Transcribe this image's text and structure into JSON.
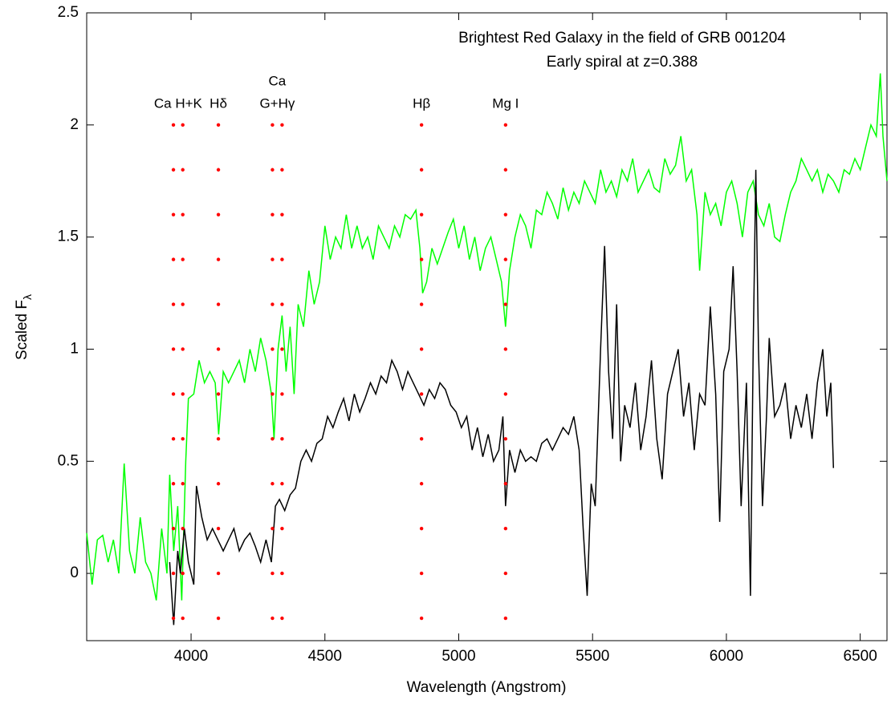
{
  "chart_data": {
    "type": "line",
    "title": [
      "Brightest Red Galaxy in the field of GRB 001204",
      "Early spiral at z=0.388"
    ],
    "xlabel": "Wavelength (Angstrom)",
    "ylabel": {
      "text": "Scaled F",
      "subscript": "λ"
    },
    "xlim": [
      3610,
      6600
    ],
    "ylim": [
      -0.3,
      2.5
    ],
    "xticks": [
      4000,
      4500,
      5000,
      5500,
      6000,
      6500
    ],
    "yticks": [
      0,
      0.5,
      1,
      1.5,
      2,
      2.5
    ],
    "grid": false,
    "series": [
      {
        "color": "#00ff00",
        "x": [
          3610,
          3630,
          3650,
          3670,
          3690,
          3710,
          3730,
          3750,
          3770,
          3790,
          3810,
          3830,
          3850,
          3870,
          3890,
          3910,
          3920,
          3935,
          3950,
          3965,
          3980,
          3990,
          4010,
          4030,
          4050,
          4070,
          4090,
          4103,
          4120,
          4140,
          4160,
          4180,
          4200,
          4220,
          4240,
          4260,
          4280,
          4300,
          4310,
          4325,
          4340,
          4355,
          4370,
          4385,
          4400,
          4420,
          4440,
          4460,
          4480,
          4500,
          4520,
          4540,
          4560,
          4580,
          4600,
          4620,
          4640,
          4660,
          4680,
          4700,
          4720,
          4740,
          4760,
          4780,
          4800,
          4820,
          4840,
          4855,
          4865,
          4880,
          4900,
          4920,
          4940,
          4960,
          4980,
          5000,
          5020,
          5040,
          5060,
          5080,
          5100,
          5120,
          5140,
          5160,
          5175,
          5190,
          5210,
          5230,
          5250,
          5270,
          5290,
          5310,
          5330,
          5350,
          5370,
          5390,
          5410,
          5430,
          5450,
          5470,
          5490,
          5510,
          5530,
          5550,
          5570,
          5590,
          5610,
          5630,
          5650,
          5670,
          5690,
          5710,
          5730,
          5750,
          5770,
          5790,
          5810,
          5830,
          5850,
          5870,
          5890,
          5900,
          5920,
          5940,
          5960,
          5980,
          6000,
          6020,
          6040,
          6060,
          6080,
          6100,
          6120,
          6140,
          6160,
          6180,
          6200,
          6220,
          6240,
          6260,
          6280,
          6300,
          6320,
          6340,
          6360,
          6380,
          6400,
          6420,
          6440,
          6460,
          6480,
          6500,
          6520,
          6540,
          6560,
          6575,
          6585,
          6600
        ],
        "values": [
          0.18,
          -0.05,
          0.15,
          0.17,
          0.05,
          0.15,
          0.0,
          0.49,
          0.1,
          0.0,
          0.25,
          0.05,
          0.0,
          -0.12,
          0.2,
          0.0,
          0.44,
          0.1,
          0.3,
          -0.12,
          0.5,
          0.78,
          0.8,
          0.95,
          0.85,
          0.9,
          0.85,
          0.62,
          0.9,
          0.85,
          0.9,
          0.95,
          0.85,
          1.0,
          0.9,
          1.05,
          0.95,
          0.8,
          0.6,
          1.0,
          1.15,
          0.9,
          1.1,
          0.8,
          1.2,
          1.1,
          1.35,
          1.2,
          1.3,
          1.55,
          1.4,
          1.5,
          1.45,
          1.6,
          1.45,
          1.55,
          1.45,
          1.5,
          1.4,
          1.55,
          1.5,
          1.45,
          1.55,
          1.5,
          1.6,
          1.58,
          1.62,
          1.45,
          1.25,
          1.3,
          1.45,
          1.38,
          1.45,
          1.52,
          1.58,
          1.45,
          1.55,
          1.4,
          1.5,
          1.35,
          1.45,
          1.5,
          1.4,
          1.3,
          1.1,
          1.35,
          1.5,
          1.6,
          1.55,
          1.45,
          1.62,
          1.6,
          1.7,
          1.65,
          1.58,
          1.72,
          1.62,
          1.7,
          1.65,
          1.75,
          1.7,
          1.65,
          1.8,
          1.7,
          1.75,
          1.68,
          1.8,
          1.75,
          1.85,
          1.7,
          1.75,
          1.8,
          1.72,
          1.7,
          1.85,
          1.78,
          1.82,
          1.95,
          1.75,
          1.8,
          1.6,
          1.35,
          1.7,
          1.6,
          1.65,
          1.55,
          1.7,
          1.75,
          1.65,
          1.5,
          1.7,
          1.75,
          1.6,
          1.55,
          1.65,
          1.5,
          1.48,
          1.6,
          1.7,
          1.75,
          1.85,
          1.8,
          1.75,
          1.8,
          1.7,
          1.78,
          1.75,
          1.7,
          1.8,
          1.78,
          1.85,
          1.8,
          1.9,
          2.0,
          1.95,
          2.23,
          1.95,
          1.75
        ]
      },
      {
        "color": "#000000",
        "x": [
          3920,
          3935,
          3950,
          3960,
          3975,
          3990,
          4010,
          4020,
          4040,
          4060,
          4080,
          4100,
          4120,
          4140,
          4160,
          4180,
          4200,
          4220,
          4240,
          4260,
          4280,
          4300,
          4315,
          4330,
          4350,
          4370,
          4390,
          4410,
          4430,
          4450,
          4470,
          4490,
          4510,
          4530,
          4550,
          4570,
          4590,
          4610,
          4630,
          4650,
          4670,
          4690,
          4710,
          4730,
          4750,
          4770,
          4790,
          4810,
          4830,
          4850,
          4870,
          4890,
          4910,
          4930,
          4950,
          4970,
          4990,
          5010,
          5030,
          5050,
          5070,
          5090,
          5110,
          5130,
          5150,
          5165,
          5175,
          5190,
          5210,
          5230,
          5250,
          5270,
          5290,
          5310,
          5330,
          5350,
          5370,
          5390,
          5410,
          5430,
          5450,
          5465,
          5480,
          5495,
          5510,
          5530,
          5545,
          5560,
          5575,
          5590,
          5605,
          5620,
          5640,
          5660,
          5680,
          5700,
          5720,
          5740,
          5760,
          5780,
          5800,
          5820,
          5840,
          5860,
          5880,
          5900,
          5920,
          5940,
          5960,
          5975,
          5990,
          6010,
          6025,
          6040,
          6055,
          6075,
          6090,
          6100,
          6110,
          6120,
          6135,
          6150,
          6160,
          6180,
          6200,
          6220,
          6240,
          6260,
          6280,
          6300,
          6320,
          6340,
          6360,
          6375,
          6390,
          6400
        ],
        "values": [
          0.05,
          -0.23,
          0.1,
          0.0,
          0.2,
          0.05,
          -0.05,
          0.39,
          0.25,
          0.15,
          0.2,
          0.15,
          0.1,
          0.15,
          0.2,
          0.1,
          0.15,
          0.18,
          0.12,
          0.05,
          0.15,
          0.05,
          0.3,
          0.33,
          0.28,
          0.35,
          0.38,
          0.5,
          0.55,
          0.5,
          0.58,
          0.6,
          0.7,
          0.65,
          0.72,
          0.78,
          0.68,
          0.8,
          0.72,
          0.78,
          0.85,
          0.8,
          0.88,
          0.85,
          0.95,
          0.9,
          0.82,
          0.9,
          0.85,
          0.8,
          0.75,
          0.82,
          0.78,
          0.85,
          0.82,
          0.75,
          0.72,
          0.65,
          0.7,
          0.55,
          0.65,
          0.52,
          0.62,
          0.5,
          0.55,
          0.7,
          0.3,
          0.55,
          0.45,
          0.55,
          0.5,
          0.52,
          0.5,
          0.58,
          0.6,
          0.55,
          0.6,
          0.65,
          0.62,
          0.7,
          0.55,
          0.2,
          -0.1,
          0.4,
          0.3,
          1.0,
          1.46,
          0.9,
          0.6,
          1.2,
          0.5,
          0.75,
          0.65,
          0.85,
          0.55,
          0.7,
          0.95,
          0.6,
          0.42,
          0.8,
          0.9,
          1.0,
          0.7,
          0.85,
          0.55,
          0.8,
          0.75,
          1.19,
          0.8,
          0.23,
          0.9,
          1.0,
          1.37,
          0.9,
          0.3,
          0.85,
          -0.1,
          1.0,
          1.8,
          1.0,
          0.3,
          0.7,
          1.05,
          0.7,
          0.75,
          0.85,
          0.6,
          0.75,
          0.65,
          0.8,
          0.6,
          0.85,
          1.0,
          0.7,
          0.85,
          0.47
        ]
      }
    ],
    "line_markers": {
      "color": "#ff0000",
      "levels": [
        -0.2,
        0,
        0.2,
        0.4,
        0.6,
        0.8,
        1,
        1.2,
        1.4,
        1.6,
        1.8,
        2
      ],
      "lines": [
        {
          "label": [
            "Ca H+K"
          ],
          "x": [
            3934,
            3969
          ]
        },
        {
          "label": [
            "Hδ"
          ],
          "x": [
            4102
          ]
        },
        {
          "label": [
            "Ca",
            "G+Hγ"
          ],
          "x": [
            4304,
            4340
          ]
        },
        {
          "label": [
            "Hβ"
          ],
          "x": [
            4861
          ]
        },
        {
          "label": [
            "Mg I"
          ],
          "x": [
            5175
          ]
        }
      ]
    }
  }
}
